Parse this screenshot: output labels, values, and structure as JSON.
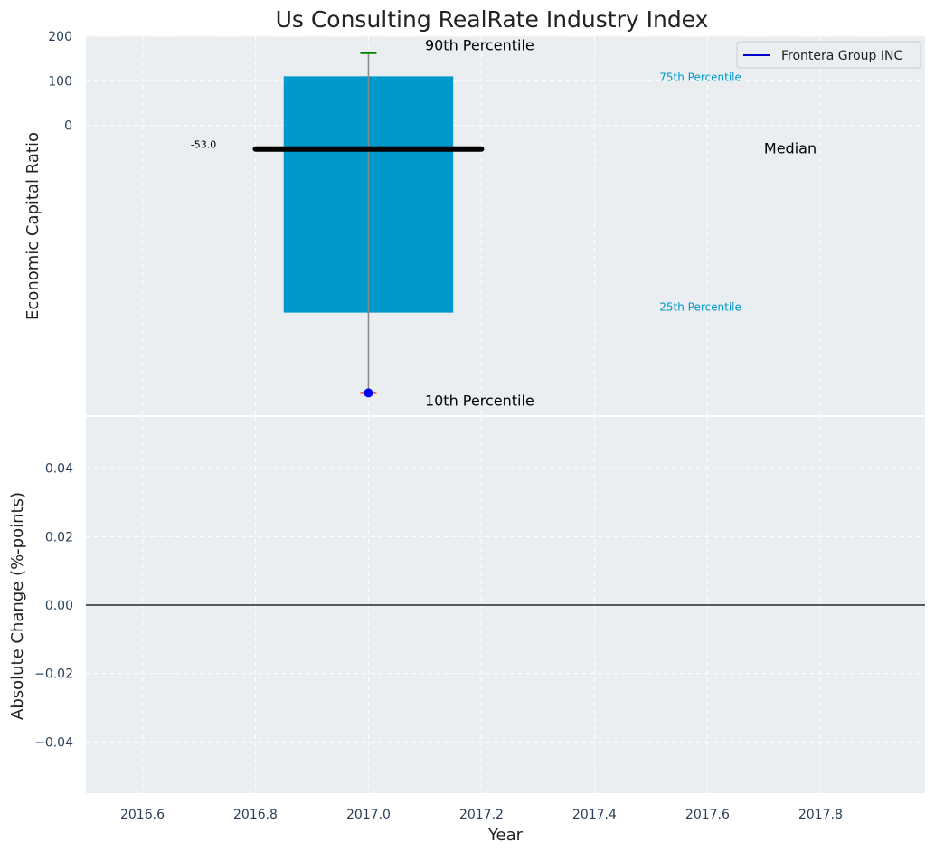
{
  "chart_data": [
    {
      "type": "bar",
      "title": "Us Consulting RealRate Industry Index",
      "xlabel": "",
      "ylabel": "Economic Capital Ratio",
      "xlim": [
        2016.5,
        2017.985
      ],
      "ylim": [
        -650,
        200
      ],
      "yticks": [
        0,
        100,
        200
      ],
      "grid": true,
      "legend": {
        "position": "top-right",
        "entries": [
          {
            "name": "Frontera Group INC",
            "color": "#0000cc"
          }
        ]
      },
      "box": {
        "x": 2017.0,
        "width": 0.3,
        "p10": -600,
        "p25": -420,
        "median": -53.0,
        "p75": 110,
        "p90": 162,
        "color": "#0099cc"
      },
      "company_point": {
        "x": 2017.0,
        "y": -600,
        "color": "#0000ff"
      },
      "median_label": "-53.0",
      "annotations": {
        "p90": "90th Percentile",
        "p75": "75th Percentile",
        "median": "Median",
        "p25": "25th Percentile",
        "p10": "10th Percentile"
      }
    },
    {
      "type": "line",
      "xlabel": "Year",
      "ylabel": "Absolute Change (%-points)",
      "xlim": [
        2016.5,
        2017.985
      ],
      "ylim": [
        -0.055,
        0.055
      ],
      "xticks": [
        2016.6,
        2016.8,
        2017.0,
        2017.2,
        2017.4,
        2017.6,
        2017.8
      ],
      "xtick_labels": [
        "2016.6",
        "2016.8",
        "2017.0",
        "2017.2",
        "2017.4",
        "2017.6",
        "2017.8"
      ],
      "yticks": [
        0.04,
        0.02,
        0.0,
        -0.02,
        -0.04
      ],
      "ytick_labels": [
        "0.04",
        "0.02",
        "0.00",
        "−0.02",
        "−0.04"
      ],
      "zero_line": 0,
      "grid": true,
      "series": []
    }
  ]
}
